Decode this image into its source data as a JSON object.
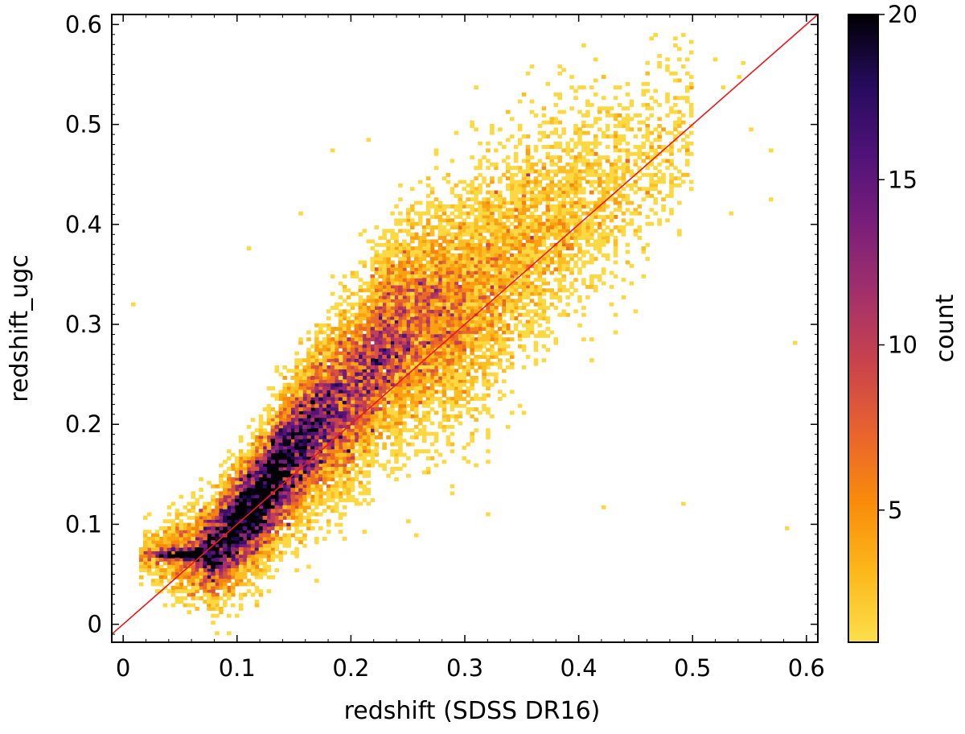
{
  "chart_data": {
    "type": "heatmap",
    "subtype": "2d-histogram",
    "title": "",
    "xlabel": "redshift (SDSS DR16)",
    "ylabel": "redshift_ugc",
    "xlim": [
      -0.01,
      0.61
    ],
    "ylim": [
      -0.018,
      0.61
    ],
    "xticks": [
      0,
      0.1,
      0.2,
      0.3,
      0.4,
      0.5,
      0.6
    ],
    "xtick_labels": [
      "0",
      "0.1",
      "0.2",
      "0.3",
      "0.4",
      "0.5",
      "0.6"
    ],
    "yticks": [
      0,
      0.1,
      0.2,
      0.3,
      0.4,
      0.5,
      0.6
    ],
    "ytick_labels": [
      "0",
      "0.1",
      "0.2",
      "0.3",
      "0.4",
      "0.5",
      "0.6"
    ],
    "grid": false,
    "reference_line": {
      "type": "y=x",
      "color": "#e8191d"
    },
    "colorbar": {
      "label": "count",
      "min": 1,
      "max": 20,
      "ticks": [
        5,
        10,
        15,
        20
      ],
      "tick_labels": [
        "5",
        "10",
        "15",
        "20"
      ],
      "colormap": "inferno_r",
      "colors": [
        "#fcdf4b",
        "#fcb81b",
        "#f98c0a",
        "#e8632e",
        "#c9434c",
        "#a2306b",
        "#7a1e7a",
        "#4f1278",
        "#250b5c",
        "#000004"
      ]
    },
    "density_structure": {
      "dense_ridge_points": [
        [
          0.03,
          0.07
        ],
        [
          0.06,
          0.07
        ],
        [
          0.08,
          0.075
        ],
        [
          0.1,
          0.1
        ],
        [
          0.12,
          0.125
        ],
        [
          0.14,
          0.16
        ],
        [
          0.17,
          0.2
        ],
        [
          0.2,
          0.23
        ],
        [
          0.23,
          0.28
        ],
        [
          0.26,
          0.3
        ],
        [
          0.3,
          0.32
        ],
        [
          0.35,
          0.38
        ],
        [
          0.4,
          0.42
        ],
        [
          0.45,
          0.47
        ],
        [
          0.5,
          0.5
        ]
      ],
      "outliers": [
        [
          0.01,
          0.32
        ],
        [
          0.11,
          0.375
        ],
        [
          0.155,
          0.41
        ],
        [
          0.185,
          0.475
        ],
        [
          0.215,
          0.485
        ],
        [
          0.292,
          0.49
        ],
        [
          0.518,
          0.565
        ],
        [
          0.545,
          0.562
        ],
        [
          0.588,
          0.283
        ],
        [
          0.582,
          0.095
        ],
        [
          0.49,
          0.12
        ],
        [
          0.42,
          0.116
        ],
        [
          0.43,
          0.32
        ],
        [
          0.57,
          0.475
        ],
        [
          0.568,
          0.425
        ],
        [
          0.17,
          0.044
        ]
      ]
    }
  }
}
